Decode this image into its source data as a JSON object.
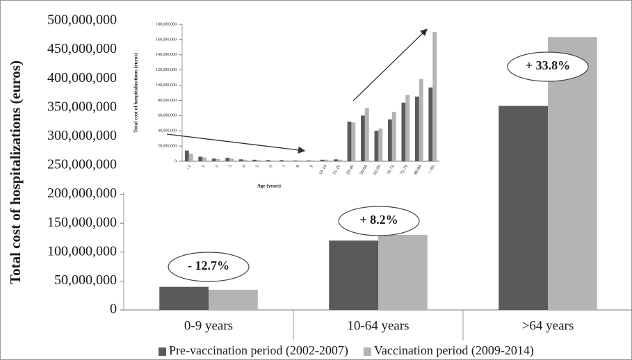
{
  "chart_data": [
    {
      "type": "bar",
      "y_label": "Total cost of hospitalizations (euros)",
      "categories": [
        "0-9 years",
        "10-64 years",
        ">64 years"
      ],
      "series": [
        {
          "name": "Pre-vaccination period (2002-2007)",
          "color": "#5a5a5a",
          "values": [
            40000000,
            120000000,
            353000000
          ]
        },
        {
          "name": "Vaccination period (2009-2014)",
          "color": "#b4b4b4",
          "values": [
            35000000,
            130000000,
            472000000
          ]
        }
      ],
      "annotations": [
        "- 12.7%",
        "+ 8.2%",
        "+ 33.8%"
      ],
      "ylim": [
        0,
        500000000
      ],
      "yticks": [
        0,
        {
          "value": 50000000,
          "label": "50,000,000"
        },
        {
          "value": 100000000,
          "label": "100,000,000"
        },
        {
          "value": 150000000,
          "label": "150,000,000"
        },
        {
          "value": 200000000,
          "label": "200,000,000"
        },
        {
          "value": 250000000,
          "label": "250,000,000"
        },
        {
          "value": 300000000,
          "label": "300,000,000"
        },
        {
          "value": 350000000,
          "label": "350,000,000"
        },
        {
          "value": 400000000,
          "label": "400,000,000"
        },
        {
          "value": 450000000,
          "label": "450,000,000"
        },
        {
          "value": 500000000,
          "label": "500,000,000"
        }
      ],
      "legend": "bottom"
    },
    {
      "type": "bar",
      "y_label": "Total cost of hospitalizations (euros)",
      "x_label": "Age (years)",
      "categories": [
        "<1",
        "1",
        "2",
        "3",
        "4",
        "5",
        "6",
        "7",
        "8",
        "9",
        "10-14",
        "15-19",
        "20-49",
        "50-64",
        "65-69",
        "70-74",
        "75-79",
        "80-84",
        ">=85"
      ],
      "series": [
        {
          "color": "#5a5a5a",
          "values": [
            14000000,
            6000000,
            3500000,
            4500000,
            2500000,
            2000000,
            1500000,
            1500000,
            1000000,
            1000000,
            2000000,
            2500000,
            52000000,
            60000000,
            40000000,
            55000000,
            77000000,
            85000000,
            97000000
          ]
        },
        {
          "color": "#b4b4b4",
          "values": [
            10000000,
            5000000,
            3000000,
            3500000,
            2000000,
            1500000,
            1000000,
            1000000,
            1000000,
            1000000,
            2000000,
            2000000,
            51000000,
            70000000,
            43000000,
            65000000,
            87000000,
            108000000,
            170000000
          ]
        }
      ],
      "ylim": [
        0,
        180000000
      ],
      "yticks": [
        0,
        {
          "value": 20000000,
          "label": "20,000,000"
        },
        {
          "value": 40000000,
          "label": "40,000,000"
        },
        {
          "value": 60000000,
          "label": "60,000,000"
        },
        {
          "value": 80000000,
          "label": "80,000,000"
        },
        {
          "value": 100000000,
          "label": "100,000,000"
        },
        {
          "value": 120000000,
          "label": "120,000,000"
        },
        {
          "value": 140000000,
          "label": "140,000,000"
        },
        {
          "value": 160000000,
          "label": "160,000,000"
        },
        {
          "value": 180000000,
          "label": "180,000,000"
        }
      ]
    }
  ]
}
